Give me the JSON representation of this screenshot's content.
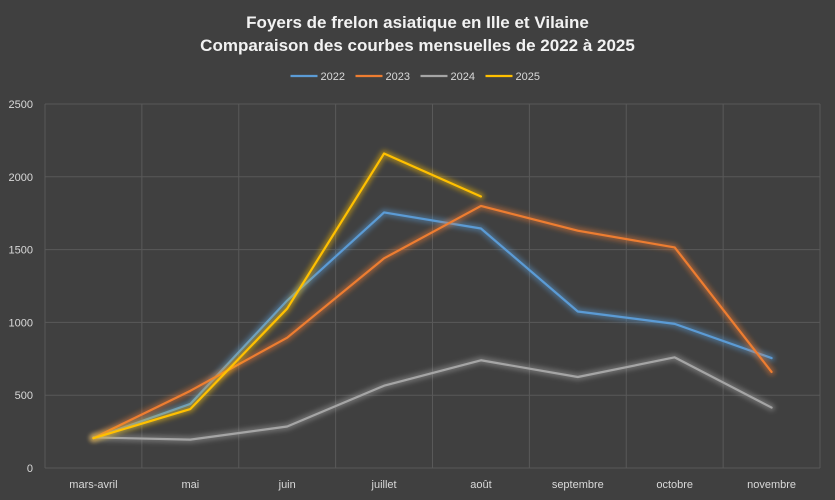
{
  "chart_data": {
    "type": "line",
    "title": "Foyers de frelon asiatique en Ille et Vilaine",
    "subtitle": "Comparaison des courbes mensuelles de 2022 à 2025",
    "xlabel": "",
    "ylabel": "",
    "categories": [
      "mars-avril",
      "mai",
      "juin",
      "juillet",
      "août",
      "septembre",
      "octobre",
      "novembre"
    ],
    "ylim": [
      0,
      2500
    ],
    "yticks": [
      0,
      500,
      1000,
      1500,
      2000,
      2500
    ],
    "grid": true,
    "legend_position": "top",
    "series": [
      {
        "name": "2022",
        "color": "#5b9bd5",
        "values": [
          205,
          440,
          1150,
          1755,
          1645,
          1075,
          990,
          755
        ]
      },
      {
        "name": "2023",
        "color": "#ed7d31",
        "values": [
          205,
          530,
          895,
          1440,
          1800,
          1630,
          1515,
          660
        ]
      },
      {
        "name": "2024",
        "color": "#a5a5a5",
        "values": [
          210,
          195,
          285,
          565,
          740,
          625,
          760,
          415
        ]
      },
      {
        "name": "2025",
        "color": "#ffc000",
        "values": [
          205,
          405,
          1095,
          2160,
          1865,
          null,
          null,
          null
        ]
      }
    ]
  }
}
